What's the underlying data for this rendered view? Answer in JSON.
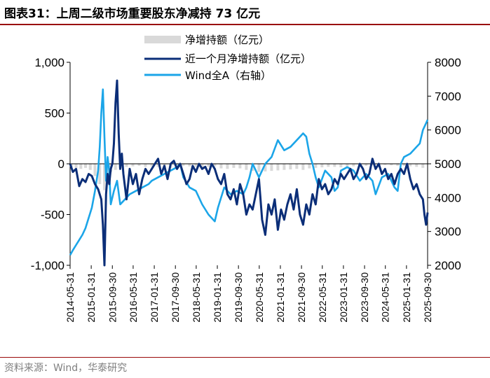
{
  "header": {
    "figure_label": "图表31：",
    "title": "上周二级市场重要股东净减持 73 亿元"
  },
  "footer": {
    "source": "资料来源：Wind，华泰研究"
  },
  "colors": {
    "bars": "#d9d9d9",
    "net_line": "#0b2e78",
    "wind_line": "#1ba5e8",
    "rule": "#9a0a0a"
  },
  "chart_data": {
    "type": "line",
    "title": "上周二级市场重要股东净减持 73 亿元",
    "xlabel": "",
    "ylabel_left": "亿元",
    "ylabel_right": "Wind全A",
    "ylim_left": [
      -1000,
      1000
    ],
    "ylim_right": [
      2000,
      8000
    ],
    "yticks_left": [
      "1,000",
      "500",
      "0",
      "-500",
      "-1,000"
    ],
    "yticks_left_values": [
      1000,
      500,
      0,
      -500,
      -1000
    ],
    "yticks_right": [
      "8000",
      "7000",
      "6000",
      "5000",
      "4000",
      "3000",
      "2000"
    ],
    "yticks_right_values": [
      8000,
      7000,
      6000,
      5000,
      4000,
      3000,
      2000
    ],
    "x_range": [
      2014.41,
      2025.75
    ],
    "x_tick_labels": [
      "2014-05-31",
      "2015-01-31",
      "2015-09-30",
      "2016-05-31",
      "2017-01-31",
      "2017-09-30",
      "2018-05-31",
      "2019-01-31",
      "2019-09-30",
      "2020-05-31",
      "2021-01-31",
      "2021-09-30",
      "2022-05-31",
      "2023-01-31",
      "2023-09-30",
      "2024-05-31",
      "2025-01-31",
      "2025-09-30"
    ],
    "x_tick_values": [
      2014.41,
      2015.08,
      2015.75,
      2016.41,
      2017.08,
      2017.75,
      2018.41,
      2019.08,
      2019.75,
      2020.41,
      2021.08,
      2021.75,
      2022.41,
      2023.08,
      2023.75,
      2024.41,
      2025.08,
      2025.75
    ],
    "legend": [
      "净增持额（亿元）",
      "近一个月净增持额（亿元）",
      "Wind全A（右轴）"
    ],
    "series": [
      {
        "name": "净增持额（亿元）",
        "type": "bar",
        "axis": "left",
        "x": [
          2014.45,
          2014.6,
          2014.75,
          2014.9,
          2015.05,
          2015.2,
          2015.35,
          2015.5,
          2015.6,
          2015.7,
          2015.85,
          2016.0,
          2016.2,
          2016.4,
          2016.6,
          2016.8,
          2017.0,
          2017.2,
          2017.4,
          2017.6,
          2017.8,
          2018.0,
          2018.2,
          2018.4,
          2018.6,
          2018.8,
          2019.0,
          2019.2,
          2019.4,
          2019.6,
          2019.8,
          2020.0,
          2020.2,
          2020.4,
          2020.6,
          2020.8,
          2021.0,
          2021.2,
          2021.4,
          2021.6,
          2021.8,
          2022.0,
          2022.2,
          2022.4,
          2022.6,
          2022.8,
          2023.0,
          2023.2,
          2023.4,
          2023.6,
          2023.8,
          2024.0,
          2024.2,
          2024.4,
          2024.6,
          2024.8,
          2025.0,
          2025.2,
          2025.4,
          2025.6
        ],
        "values": [
          -30,
          -40,
          -50,
          -40,
          -60,
          -120,
          -200,
          -260,
          -150,
          -80,
          -60,
          -40,
          -30,
          -25,
          -20,
          -30,
          -25,
          -30,
          -35,
          -40,
          -30,
          -20,
          -25,
          -30,
          -35,
          -30,
          -25,
          -45,
          -50,
          -40,
          -45,
          -60,
          -70,
          -80,
          -75,
          -70,
          -65,
          -60,
          -55,
          -50,
          -60,
          -45,
          -40,
          -35,
          -30,
          -30,
          -35,
          -30,
          -25,
          -20,
          -20,
          -15,
          -15,
          -10,
          -15,
          -20,
          -20,
          -25,
          -30,
          -40
        ]
      },
      {
        "name": "近一个月净增持额（亿元）",
        "type": "line",
        "axis": "left",
        "x": [
          2014.41,
          2014.5,
          2014.6,
          2014.7,
          2014.8,
          2014.9,
          2015.0,
          2015.1,
          2015.2,
          2015.3,
          2015.4,
          2015.45,
          2015.5,
          2015.55,
          2015.6,
          2015.65,
          2015.7,
          2015.75,
          2015.8,
          2015.85,
          2015.9,
          2015.95,
          2016.0,
          2016.05,
          2016.1,
          2016.2,
          2016.3,
          2016.4,
          2016.5,
          2016.6,
          2016.7,
          2016.8,
          2016.9,
          2017.0,
          2017.1,
          2017.2,
          2017.3,
          2017.4,
          2017.5,
          2017.6,
          2017.7,
          2017.8,
          2017.9,
          2018.0,
          2018.1,
          2018.2,
          2018.3,
          2018.4,
          2018.5,
          2018.6,
          2018.7,
          2018.8,
          2018.9,
          2019.0,
          2019.1,
          2019.2,
          2019.3,
          2019.4,
          2019.5,
          2019.6,
          2019.7,
          2019.8,
          2019.9,
          2020.0,
          2020.1,
          2020.2,
          2020.3,
          2020.4,
          2020.5,
          2020.6,
          2020.7,
          2020.8,
          2020.9,
          2021.0,
          2021.1,
          2021.2,
          2021.3,
          2021.4,
          2021.5,
          2021.6,
          2021.7,
          2021.8,
          2021.9,
          2022.0,
          2022.1,
          2022.2,
          2022.3,
          2022.4,
          2022.5,
          2022.6,
          2022.7,
          2022.8,
          2022.9,
          2023.0,
          2023.1,
          2023.2,
          2023.3,
          2023.4,
          2023.5,
          2023.6,
          2023.7,
          2023.8,
          2023.9,
          2024.0,
          2024.1,
          2024.2,
          2024.3,
          2024.4,
          2024.5,
          2024.6,
          2024.7,
          2024.8,
          2024.9,
          2025.0,
          2025.1,
          2025.2,
          2025.3,
          2025.4,
          2025.5,
          2025.6,
          2025.65,
          2025.7,
          2025.75
        ],
        "values": [
          0,
          -80,
          -50,
          -220,
          -150,
          -180,
          -100,
          -120,
          -200,
          -250,
          -350,
          -600,
          -1000,
          -300,
          -100,
          -200,
          -50,
          0,
          200,
          600,
          820,
          300,
          -50,
          100,
          -100,
          -350,
          -50,
          -200,
          -100,
          -300,
          -150,
          -50,
          -100,
          -50,
          0,
          50,
          -100,
          -20,
          -150,
          0,
          30,
          -50,
          0,
          -100,
          -200,
          -150,
          -20,
          -80,
          0,
          -50,
          -30,
          -100,
          0,
          -50,
          -150,
          -200,
          -100,
          -300,
          -350,
          -250,
          -400,
          -200,
          -300,
          -500,
          -400,
          -450,
          -300,
          -150,
          -550,
          -700,
          -400,
          -500,
          -350,
          -650,
          -450,
          -550,
          -400,
          -300,
          -450,
          -250,
          -500,
          -600,
          -400,
          -500,
          -300,
          -400,
          -150,
          -250,
          -200,
          -300,
          -250,
          -150,
          -200,
          -100,
          -150,
          -100,
          -50,
          -150,
          -100,
          0,
          -50,
          -150,
          -100,
          50,
          -50,
          0,
          -100,
          -50,
          -150,
          -100,
          -200,
          -100,
          -50,
          -100,
          0,
          -150,
          -250,
          -200,
          -300,
          -350,
          -500,
          -600,
          -480
        ]
      },
      {
        "name": "Wind全A（右轴）",
        "type": "line",
        "axis": "right",
        "x": [
          2014.41,
          2014.5,
          2014.6,
          2014.7,
          2014.8,
          2014.9,
          2015.0,
          2015.1,
          2015.2,
          2015.3,
          2015.35,
          2015.4,
          2015.45,
          2015.5,
          2015.55,
          2015.6,
          2015.65,
          2015.7,
          2015.8,
          2015.9,
          2016.0,
          2016.1,
          2016.2,
          2016.3,
          2016.5,
          2016.7,
          2016.9,
          2017.0,
          2017.2,
          2017.4,
          2017.6,
          2017.8,
          2017.9,
          2018.0,
          2018.2,
          2018.4,
          2018.6,
          2018.8,
          2019.0,
          2019.1,
          2019.3,
          2019.5,
          2019.7,
          2019.9,
          2020.0,
          2020.1,
          2020.2,
          2020.4,
          2020.6,
          2020.8,
          2021.0,
          2021.2,
          2021.4,
          2021.6,
          2021.8,
          2021.9,
          2022.0,
          2022.1,
          2022.2,
          2022.3,
          2022.5,
          2022.7,
          2022.8,
          2022.9,
          2023.0,
          2023.2,
          2023.4,
          2023.6,
          2023.8,
          2024.0,
          2024.1,
          2024.3,
          2024.5,
          2024.7,
          2024.8,
          2024.9,
          2025.0,
          2025.2,
          2025.4,
          2025.5,
          2025.6,
          2025.7,
          2025.75
        ],
        "values": [
          2300,
          2450,
          2600,
          2750,
          2900,
          3100,
          3400,
          3700,
          4200,
          4800,
          5500,
          6500,
          7200,
          5800,
          4500,
          5200,
          4800,
          3800,
          4200,
          4500,
          3800,
          3900,
          4000,
          4100,
          4200,
          4300,
          4400,
          4500,
          4600,
          4700,
          4800,
          4900,
          5000,
          4600,
          4300,
          4200,
          3800,
          3500,
          3300,
          3700,
          4300,
          4100,
          4200,
          4100,
          4300,
          4600,
          5000,
          4600,
          5000,
          5200,
          5700,
          5400,
          5500,
          5700,
          5900,
          5800,
          5300,
          5000,
          4600,
          4300,
          4800,
          4600,
          4200,
          4300,
          4800,
          4900,
          4800,
          4500,
          4700,
          4500,
          4100,
          4600,
          4700,
          4300,
          4200,
          5000,
          5200,
          5300,
          5500,
          5600,
          6000,
          6200,
          6300
        ]
      }
    ]
  }
}
